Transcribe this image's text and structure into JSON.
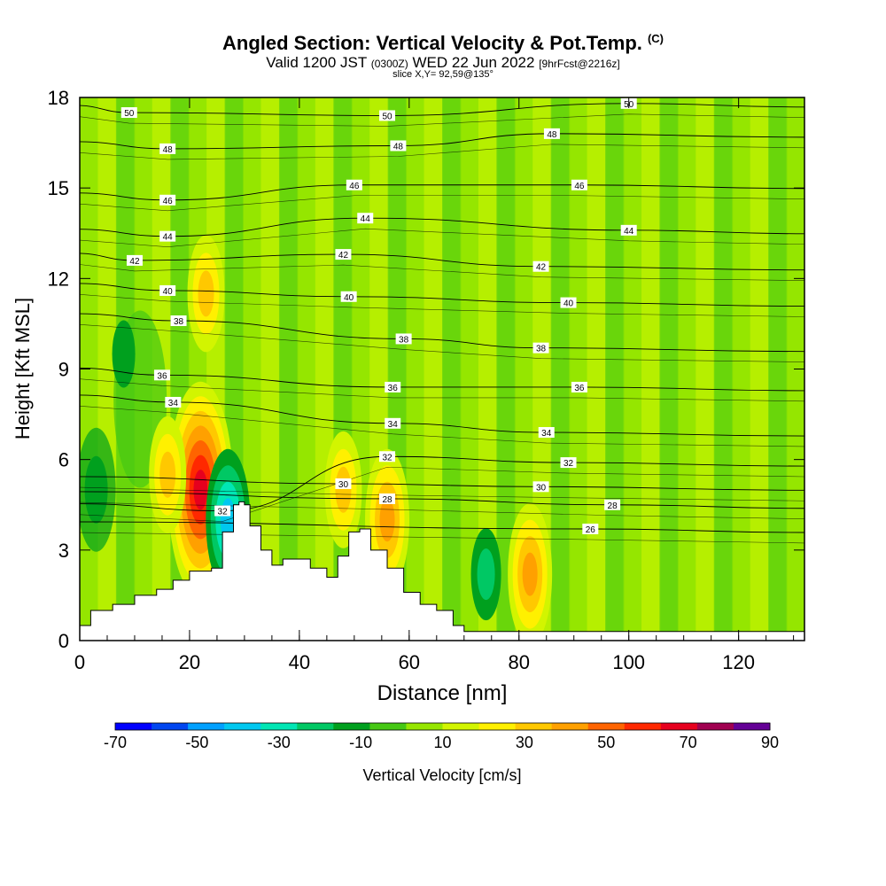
{
  "header": {
    "title": "Angled Section: Vertical Velocity & Pot.Temp.",
    "title_tag": "(C)",
    "valid_prefix": "Valid 1200 JST",
    "valid_utc": "(0300Z)",
    "valid_date": "WED 22 Jun 2022",
    "forecast": "[9hrFcst@2216z]",
    "slice": "slice X,Y= 92,59@135°"
  },
  "chart_data": {
    "type": "heatmap",
    "xlabel": "Distance [nm]",
    "ylabel": "Height [Kft MSL]",
    "xlim": [
      0,
      132
    ],
    "ylim": [
      0,
      18
    ],
    "x_ticks": [
      0,
      20,
      40,
      60,
      80,
      100,
      120
    ],
    "y_ticks": [
      0,
      3,
      6,
      9,
      12,
      15,
      18
    ],
    "colorbar": {
      "label": "Vertical Velocity [cm/s]",
      "ticks": [
        -70,
        -50,
        -30,
        -10,
        10,
        30,
        50,
        70,
        90
      ],
      "bounds": [
        -70,
        90
      ],
      "colors": [
        "#0000ff",
        "#0046f0",
        "#00a0ff",
        "#00c8f0",
        "#00e6b4",
        "#00c864",
        "#00a01e",
        "#46c814",
        "#96e600",
        "#d2f500",
        "#fff000",
        "#ffc800",
        "#ffa000",
        "#ff6400",
        "#ff2800",
        "#e6001e",
        "#a00050",
        "#640096"
      ]
    },
    "terrain_profile": {
      "x": [
        0,
        2,
        6,
        10,
        14,
        17,
        20,
        24,
        26,
        28,
        29,
        30,
        31,
        33,
        35,
        37,
        39,
        42,
        45,
        47,
        49,
        51,
        53,
        56,
        59,
        62,
        65,
        68,
        70,
        132
      ],
      "height": [
        0.5,
        1.0,
        1.2,
        1.5,
        1.7,
        2.0,
        2.3,
        2.4,
        3.6,
        4.5,
        4.6,
        4.5,
        3.8,
        3.0,
        2.5,
        2.7,
        2.7,
        2.4,
        2.1,
        2.8,
        3.6,
        3.7,
        3.0,
        2.4,
        1.6,
        1.2,
        1.0,
        0.5,
        0.3,
        0.3
      ]
    },
    "velocity_features": [
      {
        "x": 22,
        "z": 5.0,
        "value": 70
      },
      {
        "x": 23,
        "z": 11.5,
        "value": 30
      },
      {
        "x": 16,
        "z": 5.5,
        "value": 25
      },
      {
        "x": 27,
        "z": 4.0,
        "value": -40
      },
      {
        "x": 48,
        "z": 5.0,
        "value": 30
      },
      {
        "x": 56,
        "z": 4.0,
        "value": 40
      },
      {
        "x": 82,
        "z": 2.2,
        "value": 35
      },
      {
        "x": 3,
        "z": 5.0,
        "value": -12
      },
      {
        "x": 8,
        "z": 9.5,
        "value": -12
      },
      {
        "x": 74,
        "z": 2.2,
        "value": -15
      }
    ],
    "theta_contours": [
      {
        "level": 26,
        "labels": [
          {
            "x": 93,
            "z": 3.7
          }
        ]
      },
      {
        "level": 28,
        "labels": [
          {
            "x": 56,
            "z": 4.7
          },
          {
            "x": 97,
            "z": 4.5
          }
        ]
      },
      {
        "level": 30,
        "labels": [
          {
            "x": 48,
            "z": 5.2
          },
          {
            "x": 84,
            "z": 5.1
          }
        ]
      },
      {
        "level": 32,
        "labels": [
          {
            "x": 26,
            "z": 4.3
          },
          {
            "x": 56,
            "z": 6.1
          },
          {
            "x": 89,
            "z": 5.9
          }
        ]
      },
      {
        "level": 34,
        "labels": [
          {
            "x": 17,
            "z": 7.9
          },
          {
            "x": 57,
            "z": 7.2
          },
          {
            "x": 85,
            "z": 6.9
          }
        ]
      },
      {
        "level": 36,
        "labels": [
          {
            "x": 15,
            "z": 8.8
          },
          {
            "x": 57,
            "z": 8.4
          },
          {
            "x": 91,
            "z": 8.4
          }
        ]
      },
      {
        "level": 38,
        "labels": [
          {
            "x": 18,
            "z": 10.6
          },
          {
            "x": 59,
            "z": 10.0
          },
          {
            "x": 84,
            "z": 9.7
          }
        ]
      },
      {
        "level": 40,
        "labels": [
          {
            "x": 16,
            "z": 11.6
          },
          {
            "x": 49,
            "z": 11.4
          },
          {
            "x": 89,
            "z": 11.2
          }
        ]
      },
      {
        "level": 42,
        "labels": [
          {
            "x": 10,
            "z": 12.6
          },
          {
            "x": 48,
            "z": 12.8
          },
          {
            "x": 84,
            "z": 12.4
          }
        ]
      },
      {
        "level": 44,
        "labels": [
          {
            "x": 16,
            "z": 13.4
          },
          {
            "x": 52,
            "z": 14.0
          },
          {
            "x": 100,
            "z": 13.6
          }
        ]
      },
      {
        "level": 46,
        "labels": [
          {
            "x": 16,
            "z": 14.6
          },
          {
            "x": 50,
            "z": 15.1
          },
          {
            "x": 91,
            "z": 15.1
          }
        ]
      },
      {
        "level": 48,
        "labels": [
          {
            "x": 16,
            "z": 16.3
          },
          {
            "x": 58,
            "z": 16.4
          },
          {
            "x": 86,
            "z": 16.8
          }
        ]
      },
      {
        "level": 50,
        "labels": [
          {
            "x": 9,
            "z": 17.5
          },
          {
            "x": 56,
            "z": 17.4
          },
          {
            "x": 100,
            "z": 17.8
          }
        ]
      }
    ]
  }
}
